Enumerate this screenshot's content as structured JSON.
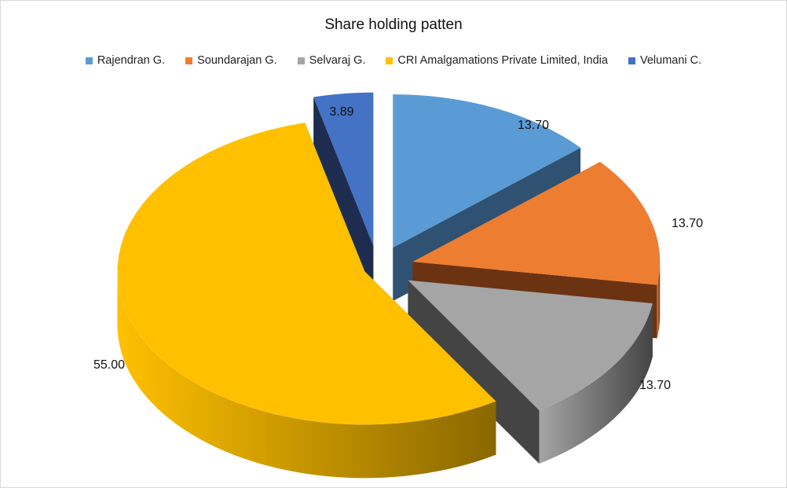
{
  "chart_data": {
    "type": "pie",
    "variant": "3d-exploded",
    "title": "Share holding patten",
    "legend_position": "top",
    "slices": [
      {
        "name": "Rajendran G.",
        "value": 13.7,
        "label": "13.70",
        "color": "#5B9BD5",
        "dark": "#2F5273"
      },
      {
        "name": "Soundarajan G.",
        "value": 13.7,
        "label": "13.70",
        "color": "#ED7D31",
        "dark": "#6B3312"
      },
      {
        "name": "Selvaraj G.",
        "value": 13.7,
        "label": "13.70",
        "color": "#A5A5A5",
        "dark": "#444444"
      },
      {
        "name": "CRI Amalgamations Private Limited, India",
        "value": 55.0,
        "label": "55.00",
        "color": "#FFC000",
        "dark": "#8A6800"
      },
      {
        "name": "Velumani C.",
        "value": 3.89,
        "label": "3.89",
        "color": "#4472C4",
        "dark": "#1E2D4F"
      }
    ]
  }
}
